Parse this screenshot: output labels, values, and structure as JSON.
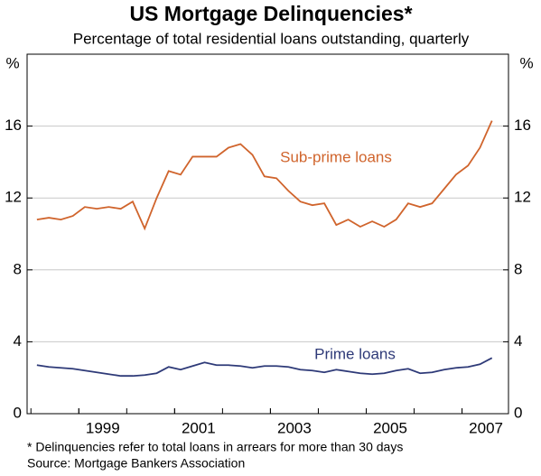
{
  "chart_data": {
    "type": "line",
    "title": "US Mortgage Delinquencies*",
    "subtitle": "Percentage of total residential loans outstanding, quarterly",
    "y_label": "%",
    "footnote": "*   Delinquencies refer to total loans in arrears for more than 30 days",
    "source": "Source: Mortgage Bankers Association",
    "x": [
      1998.125,
      1998.375,
      1998.625,
      1998.875,
      1999.125,
      1999.375,
      1999.625,
      1999.875,
      2000.125,
      2000.375,
      2000.625,
      2000.875,
      2001.125,
      2001.375,
      2001.625,
      2001.875,
      2002.125,
      2002.375,
      2002.625,
      2002.875,
      2003.125,
      2003.375,
      2003.625,
      2003.875,
      2004.125,
      2004.375,
      2004.625,
      2004.875,
      2005.125,
      2005.375,
      2005.625,
      2005.875,
      2006.125,
      2006.375,
      2006.625,
      2006.875,
      2007.125,
      2007.375,
      2007.625
    ],
    "series": [
      {
        "name": "Sub-prime loans",
        "color": "#d0642c",
        "values": [
          10.8,
          10.9,
          10.8,
          11.0,
          11.5,
          11.4,
          11.5,
          11.4,
          11.8,
          10.3,
          12.0,
          13.5,
          13.3,
          14.3,
          14.3,
          14.3,
          14.8,
          15.0,
          14.4,
          13.2,
          13.1,
          12.4,
          11.8,
          11.6,
          11.7,
          10.5,
          10.8,
          10.4,
          10.7,
          10.4,
          10.8,
          11.7,
          11.5,
          11.7,
          12.5,
          13.3,
          13.8,
          14.8,
          16.3
        ]
      },
      {
        "name": "Prime loans",
        "color": "#2e3a78",
        "values": [
          2.7,
          2.6,
          2.55,
          2.5,
          2.4,
          2.3,
          2.2,
          2.1,
          2.1,
          2.15,
          2.25,
          2.6,
          2.45,
          2.65,
          2.85,
          2.7,
          2.7,
          2.65,
          2.55,
          2.65,
          2.65,
          2.6,
          2.45,
          2.4,
          2.3,
          2.45,
          2.35,
          2.25,
          2.2,
          2.25,
          2.4,
          2.5,
          2.25,
          2.3,
          2.45,
          2.55,
          2.6,
          2.75,
          3.1
        ]
      }
    ],
    "xlim": [
      1997.92,
      2007.97
    ],
    "xticks": [
      1999,
      2001,
      2003,
      2005,
      2007
    ],
    "ylim": [
      0,
      20
    ],
    "yticks": [
      0,
      4,
      8,
      12,
      16
    ],
    "grid": true
  }
}
